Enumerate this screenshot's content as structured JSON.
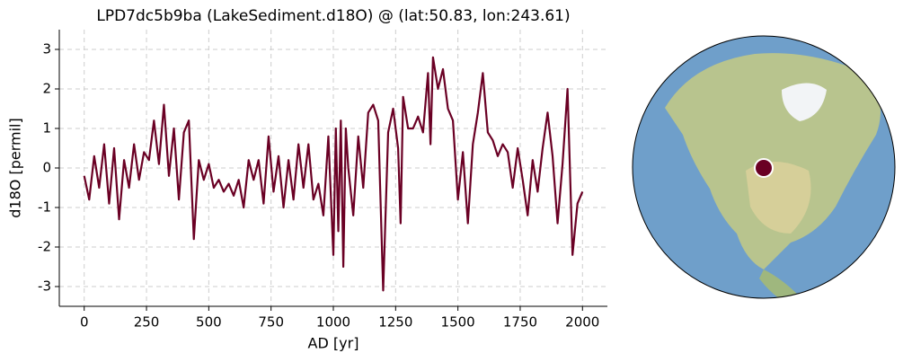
{
  "chart_data": {
    "type": "line",
    "title": "LPD7dc5b9ba (LakeSediment.d18O) @ (lat:50.83, lon:243.61)",
    "x_label": "AD [yr]",
    "y_label": "d18O [permil]",
    "x": [
      0,
      20,
      40,
      60,
      80,
      100,
      120,
      140,
      160,
      180,
      200,
      220,
      240,
      260,
      280,
      300,
      320,
      340,
      360,
      380,
      400,
      420,
      440,
      460,
      480,
      500,
      520,
      540,
      560,
      580,
      600,
      620,
      640,
      660,
      680,
      700,
      720,
      740,
      760,
      780,
      800,
      820,
      840,
      860,
      880,
      900,
      920,
      940,
      960,
      980,
      1000,
      1010,
      1020,
      1030,
      1040,
      1050,
      1060,
      1080,
      1100,
      1120,
      1140,
      1160,
      1180,
      1200,
      1220,
      1240,
      1260,
      1270,
      1280,
      1300,
      1320,
      1340,
      1360,
      1380,
      1390,
      1400,
      1420,
      1440,
      1460,
      1480,
      1500,
      1520,
      1540,
      1560,
      1580,
      1600,
      1620,
      1640,
      1660,
      1680,
      1700,
      1720,
      1740,
      1760,
      1780,
      1800,
      1820,
      1840,
      1860,
      1880,
      1900,
      1920,
      1940,
      1960,
      1980,
      2000
    ],
    "values": [
      -0.2,
      -0.8,
      0.3,
      -0.5,
      0.6,
      -0.9,
      0.5,
      -1.3,
      0.2,
      -0.5,
      0.6,
      -0.3,
      0.4,
      0.2,
      1.2,
      0.1,
      1.6,
      -0.2,
      1.0,
      -0.8,
      0.9,
      1.2,
      -1.8,
      0.2,
      -0.3,
      0.1,
      -0.5,
      -0.3,
      -0.6,
      -0.4,
      -0.7,
      -0.3,
      -1.0,
      0.2,
      -0.3,
      0.2,
      -0.9,
      0.8,
      -0.6,
      0.3,
      -1.0,
      0.2,
      -0.8,
      0.6,
      -0.5,
      0.6,
      -0.8,
      -0.4,
      -1.2,
      0.8,
      -2.2,
      1.0,
      -1.6,
      1.2,
      -2.5,
      1.0,
      0.0,
      -1.2,
      0.8,
      -0.5,
      1.4,
      1.6,
      1.2,
      -3.1,
      0.9,
      1.5,
      0.5,
      -1.4,
      1.8,
      1.0,
      1.0,
      1.3,
      0.9,
      2.4,
      0.6,
      2.8,
      2.0,
      2.5,
      1.5,
      1.2,
      -0.8,
      0.4,
      -1.4,
      0.6,
      1.4,
      2.4,
      0.9,
      0.7,
      0.3,
      0.6,
      0.4,
      -0.5,
      0.5,
      -0.3,
      -1.2,
      0.2,
      -0.6,
      0.5,
      1.4,
      0.3,
      -1.4,
      0.1,
      2.0,
      -2.2,
      -0.9,
      -0.6
    ],
    "color": "#6a0024",
    "xlim": [
      -100,
      2100
    ],
    "xticks": [
      0,
      250,
      500,
      750,
      1000,
      1250,
      1500,
      1750,
      2000
    ],
    "ylim": [
      -3.5,
      3.5
    ],
    "yticks": [
      -3,
      -2,
      -1,
      0,
      1,
      2,
      3
    ],
    "grid": true
  }
}
